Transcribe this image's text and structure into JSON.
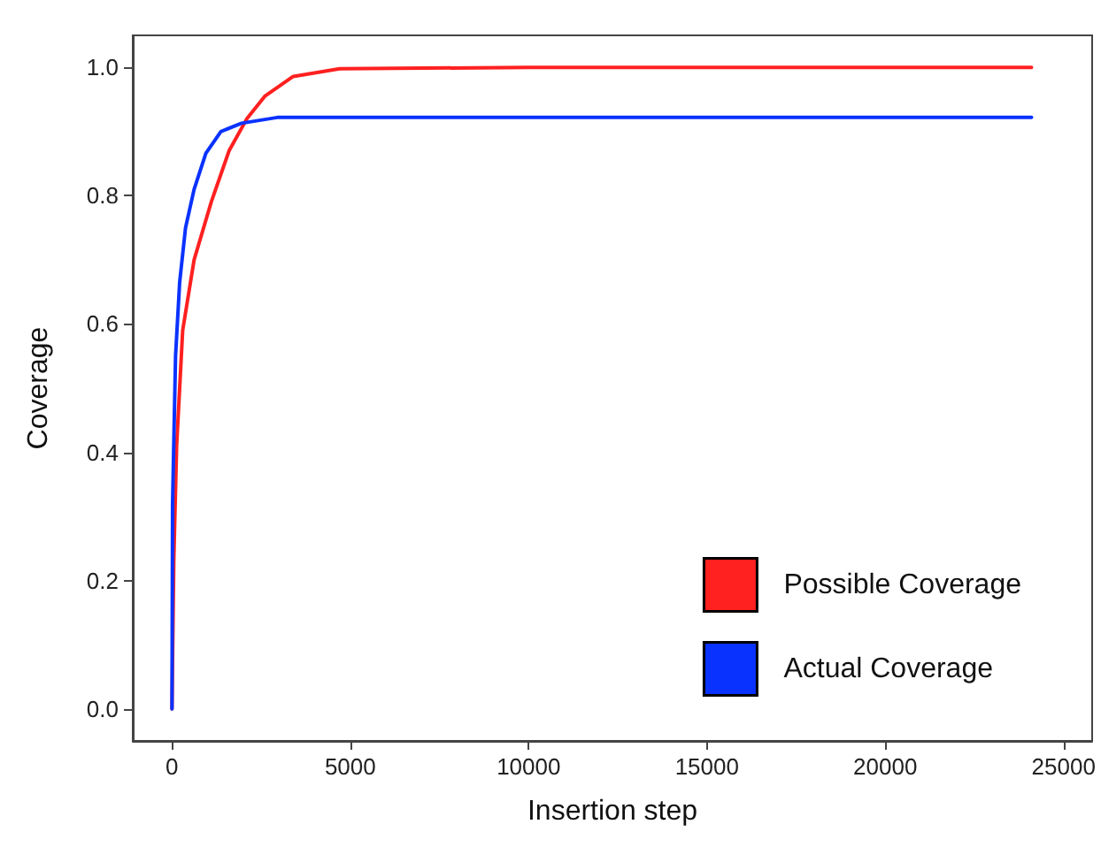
{
  "chart_data": {
    "type": "line",
    "xlabel": "Insertion step",
    "ylabel": "Coverage",
    "xlim": [
      -1100,
      25800
    ],
    "ylim": [
      -0.05,
      1.05
    ],
    "xticks": [
      0,
      5000,
      10000,
      15000,
      20000,
      25000
    ],
    "yticks": [
      {
        "value": 0,
        "label": "0.0"
      },
      {
        "value": 0.2,
        "label": "0.2"
      },
      {
        "value": 0.4,
        "label": "0.4"
      },
      {
        "value": 0.6,
        "label": "0.6"
      },
      {
        "value": 0.8,
        "label": "0.8"
      },
      {
        "value": 1,
        "label": "1.0"
      }
    ],
    "grid": false,
    "legend": "bottom right",
    "marker": "none",
    "line_style": "solid",
    "series": [
      {
        "name": "Possible Coverage",
        "color": "#ff2020",
        "x": [
          0,
          50,
          130,
          300,
          620,
          1100,
          1600,
          2100,
          2600,
          3400,
          4700,
          10000,
          24100
        ],
        "values": [
          0,
          0.23,
          0.41,
          0.59,
          0.7,
          0.79,
          0.87,
          0.92,
          0.955,
          0.986,
          0.998,
          1,
          1
        ]
      },
      {
        "name": "Actual Coverage",
        "color": "#0a32ff",
        "x": [
          0,
          16,
          100,
          215,
          380,
          620,
          950,
          1370,
          1950,
          2950,
          10000,
          24100
        ],
        "values": [
          0,
          0.32,
          0.55,
          0.665,
          0.75,
          0.81,
          0.866,
          0.9,
          0.913,
          0.922,
          0.922,
          0.922
        ]
      }
    ]
  }
}
